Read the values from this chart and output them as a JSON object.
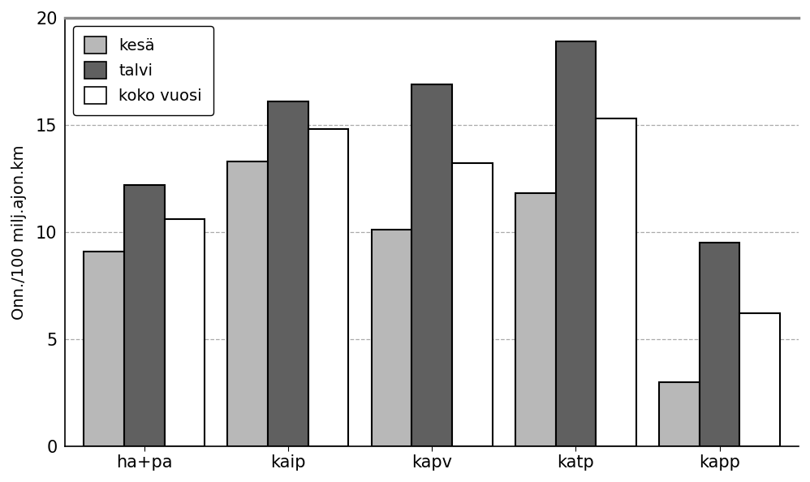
{
  "categories": [
    "ha+pa",
    "kaip",
    "kapv",
    "katp",
    "kapp"
  ],
  "kesa": [
    9.1,
    13.3,
    10.1,
    11.8,
    3.0
  ],
  "talvi": [
    12.2,
    16.1,
    16.9,
    18.9,
    9.5
  ],
  "koko_vuosi": [
    10.6,
    14.8,
    13.2,
    15.3,
    6.2
  ],
  "color_kesa": "#b8b8b8",
  "color_talvi": "#606060",
  "color_koko": "#ffffff",
  "ylabel": "Onn./100 milj.ajon.km",
  "ylim": [
    0,
    20
  ],
  "yticks": [
    0,
    5,
    10,
    15,
    20
  ],
  "legend_labels": [
    "kesä",
    "talvi",
    "koko vuosi"
  ],
  "bar_width": 0.28,
  "edgecolor": "#000000",
  "grid_color": "#aaaaaa",
  "background_color": "#ffffff",
  "fig_background": "#ffffff"
}
